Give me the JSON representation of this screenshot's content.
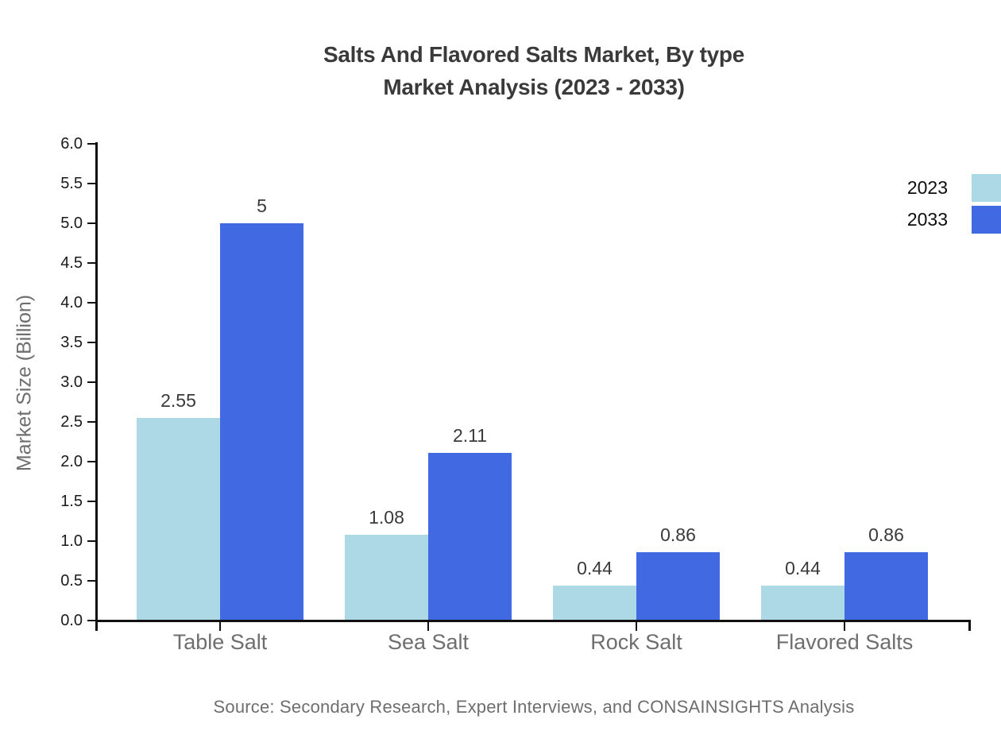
{
  "title": {
    "line1": "Salts And Flavored Salts Market, By type",
    "line2": "Market Analysis (2023 - 2033)"
  },
  "source": "Source: Secondary Research, Expert Interviews, and CONSAINSIGHTS Analysis",
  "chart_data": {
    "type": "bar",
    "title": "Salts And Flavored Salts Market, By type Market Analysis (2023 - 2033)",
    "categories": [
      "Table Salt",
      "Sea Salt",
      "Rock Salt",
      "Flavored Salts"
    ],
    "series": [
      {
        "name": "2023",
        "color": "#add8e6",
        "values": [
          2.55,
          1.08,
          0.44,
          0.44
        ]
      },
      {
        "name": "2033",
        "color": "#4169e1",
        "values": [
          5,
          2.11,
          0.86,
          0.86
        ]
      }
    ],
    "xlabel": "",
    "ylabel": "Market Size (Billion)",
    "ylim": [
      0,
      6
    ],
    "ytick_step": 0.5,
    "grid": false,
    "legend_position": "top-right-outside",
    "bar_value_labels_shown": true
  },
  "colors": {
    "background": "#ffffff",
    "axis": "#111111",
    "title_text": "#3a3a3a",
    "muted_text": "#6e6e6e",
    "tick_text": "#1a1a1a",
    "series_2023": "#add8e6",
    "series_2033": "#4169e1"
  }
}
